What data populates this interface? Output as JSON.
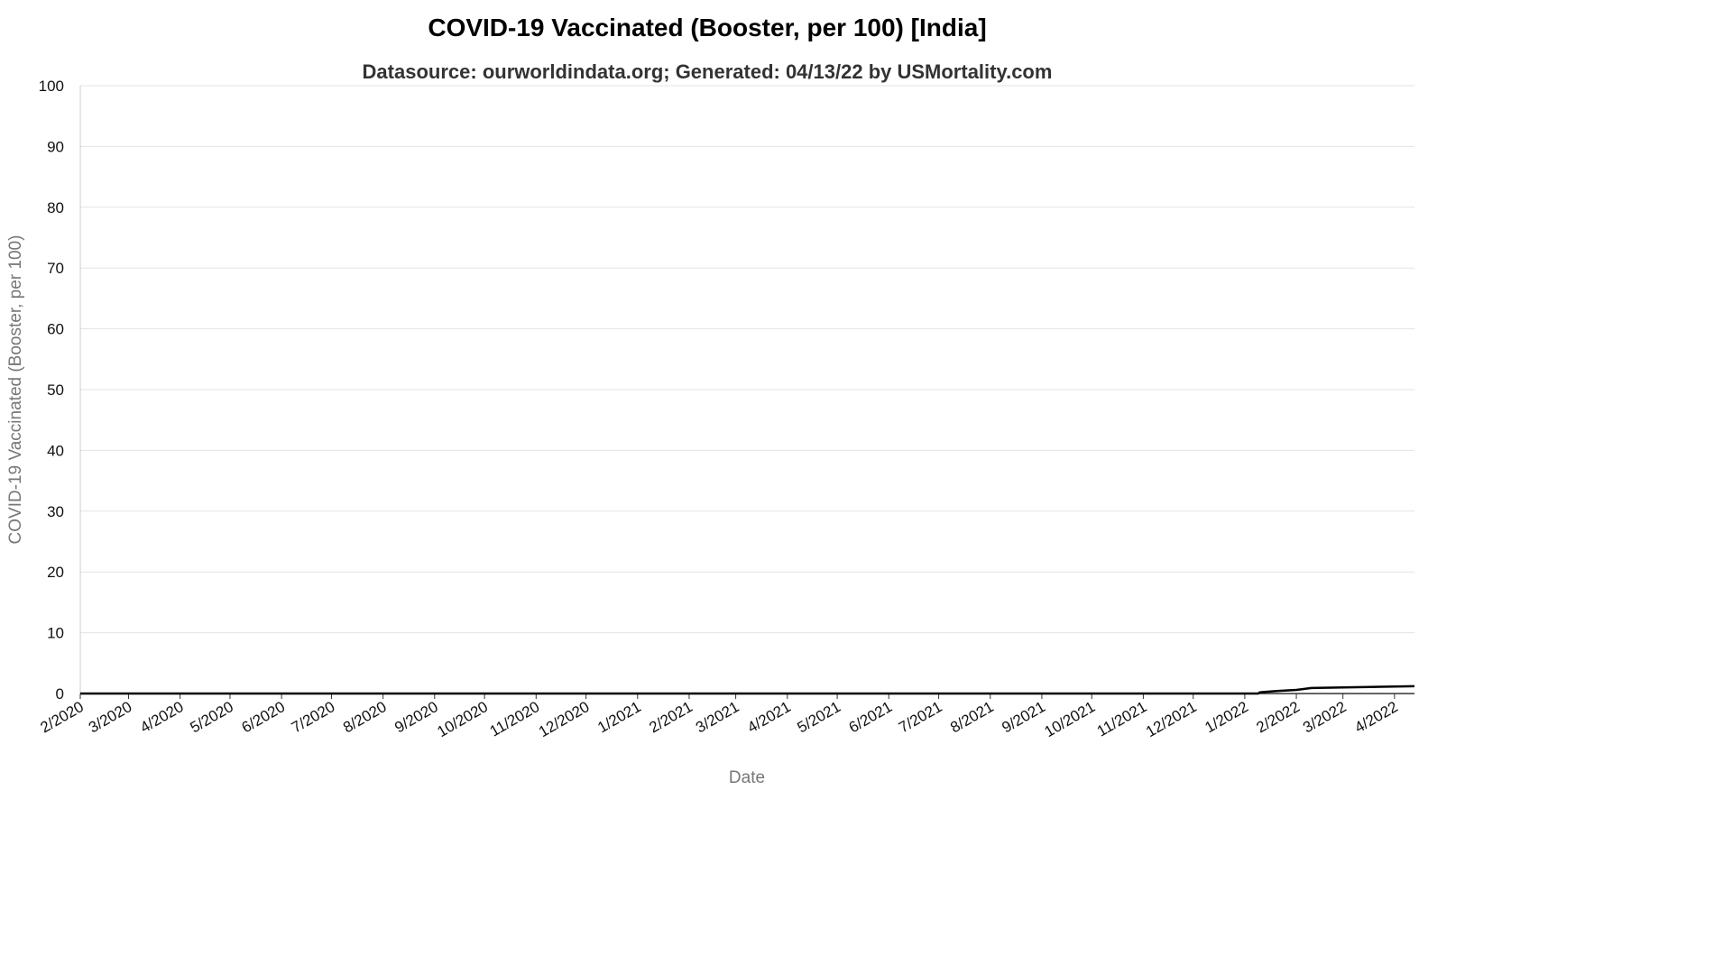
{
  "chart_data": {
    "type": "line",
    "title": "COVID-19 Vaccinated (Booster, per 100) [India]",
    "subtitle": "Datasource: ourworldindata.org; Generated: 04/13/22 by USMortality.com",
    "xlabel": "Date",
    "ylabel": "COVID-19 Vaccinated (Booster, per 100)",
    "ylim": [
      0,
      100
    ],
    "yticks": [
      0,
      10,
      20,
      30,
      40,
      50,
      60,
      70,
      80,
      90,
      100
    ],
    "xlim": [
      "2020-02-01",
      "2022-04-13"
    ],
    "xticks": [
      {
        "date": "2020-02-01",
        "label": "2/2020"
      },
      {
        "date": "2020-03-01",
        "label": "3/2020"
      },
      {
        "date": "2020-04-01",
        "label": "4/2020"
      },
      {
        "date": "2020-05-01",
        "label": "5/2020"
      },
      {
        "date": "2020-06-01",
        "label": "6/2020"
      },
      {
        "date": "2020-07-01",
        "label": "7/2020"
      },
      {
        "date": "2020-08-01",
        "label": "8/2020"
      },
      {
        "date": "2020-09-01",
        "label": "9/2020"
      },
      {
        "date": "2020-10-01",
        "label": "10/2020"
      },
      {
        "date": "2020-11-01",
        "label": "11/2020"
      },
      {
        "date": "2020-12-01",
        "label": "12/2020"
      },
      {
        "date": "2021-01-01",
        "label": "1/2021"
      },
      {
        "date": "2021-02-01",
        "label": "2/2021"
      },
      {
        "date": "2021-03-01",
        "label": "3/2021"
      },
      {
        "date": "2021-04-01",
        "label": "4/2021"
      },
      {
        "date": "2021-05-01",
        "label": "5/2021"
      },
      {
        "date": "2021-06-01",
        "label": "6/2021"
      },
      {
        "date": "2021-07-01",
        "label": "7/2021"
      },
      {
        "date": "2021-08-01",
        "label": "8/2021"
      },
      {
        "date": "2021-09-01",
        "label": "9/2021"
      },
      {
        "date": "2021-10-01",
        "label": "10/2021"
      },
      {
        "date": "2021-11-01",
        "label": "11/2021"
      },
      {
        "date": "2021-12-01",
        "label": "12/2021"
      },
      {
        "date": "2022-01-01",
        "label": "1/2022"
      },
      {
        "date": "2022-02-01",
        "label": "2/2022"
      },
      {
        "date": "2022-03-01",
        "label": "3/2022"
      },
      {
        "date": "2022-04-01",
        "label": "4/2022"
      }
    ],
    "series": [
      {
        "color": "#000000",
        "points": [
          {
            "x": "2020-02-01",
            "y": 0
          },
          {
            "x": "2022-01-09",
            "y": 0
          },
          {
            "x": "2022-01-10",
            "y": 0.2
          },
          {
            "x": "2022-01-20",
            "y": 0.4
          },
          {
            "x": "2022-02-01",
            "y": 0.6
          },
          {
            "x": "2022-02-10",
            "y": 0.9
          },
          {
            "x": "2022-03-01",
            "y": 1.0
          },
          {
            "x": "2022-04-13",
            "y": 1.2
          }
        ]
      }
    ],
    "grid": true,
    "legend": "none"
  }
}
